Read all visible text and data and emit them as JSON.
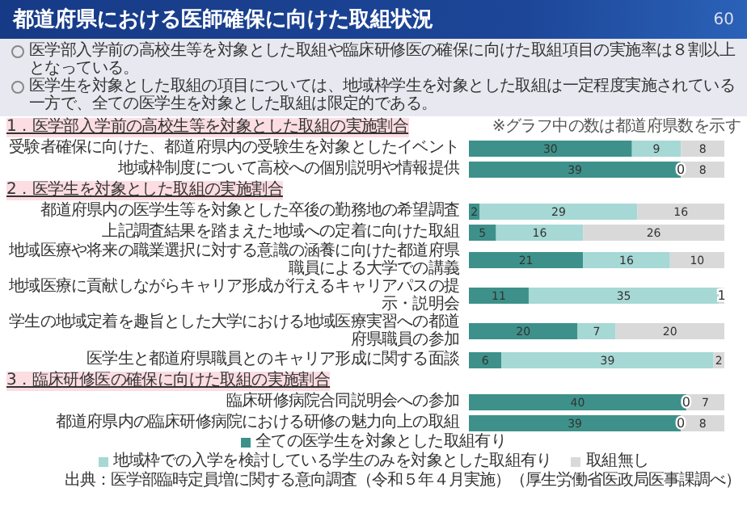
{
  "chart_data": [
    {
      "type": "other",
      "title": "都道府県における医師確保に向けた取組状況",
      "annotations": [
        "60",
        "医学部入学前の高校生等を対象とした取組や臨床研修医の確保に向けた取組項目の実施率は８割以上となっている。",
        "医学生を対象とした取組の項目については、地域枠学生を対象とした取組は一定程度実施されている一方で、全ての医学生を対象とした取組は限定的である。"
      ]
    },
    {
      "type": "bar",
      "orientation": "horizontal",
      "stacked": true,
      "data_labels": true,
      "title": "1．医学部入学前の高校生等を対象とした取組の実施割合",
      "annotations": [
        "※グラフ中の数は都道府県数を示す"
      ],
      "xlim": [
        0,
        47
      ],
      "categories": [
        "受験者確保に向けた、都道府県内の受験生を対象としたイベント",
        "地域枠制度について高校への個別説明や情報提供"
      ],
      "series": [
        {
          "color": "#3d918a",
          "values": [
            30,
            39
          ]
        },
        {
          "color": "#a6d8d5",
          "values": [
            9,
            0
          ]
        },
        {
          "color": "#d9d9d9",
          "values": [
            8,
            8
          ]
        }
      ]
    },
    {
      "type": "bar",
      "orientation": "horizontal",
      "stacked": true,
      "data_labels": true,
      "title": "2．医学生を対象とした取組の実施割合",
      "xlim": [
        0,
        47
      ],
      "categories": [
        "都道府県内の医学生等を対象とした卒後の勤務地の希望調査",
        "上記調査結果を踏まえた地域への定着に向けた取組",
        "地域医療や将来の職業選択に対する意識の涵養に向けた都道府県職員による大学での講義",
        "地域医療に貢献しながらキャリア形成が行えるキャリアパスの提示・説明会",
        "学生の地域定着を趣旨とした大学における地域医療実習への都道府県職員の参加",
        "医学生と都道府県職員とのキャリア形成に関する面談"
      ],
      "series": [
        {
          "color": "#3d918a",
          "values": [
            2,
            5,
            21,
            11,
            20,
            6
          ]
        },
        {
          "color": "#a6d8d5",
          "values": [
            29,
            16,
            16,
            35,
            7,
            39
          ]
        },
        {
          "color": "#d9d9d9",
          "values": [
            16,
            26,
            10,
            1,
            20,
            2
          ]
        }
      ]
    },
    {
      "type": "bar",
      "orientation": "horizontal",
      "stacked": true,
      "data_labels": true,
      "title": "3．臨床研修医の確保に向けた取組の実施割合",
      "xlim": [
        0,
        47
      ],
      "legend": "bottom",
      "annotations": [
        "出典：医学部臨時定員増に関する意向調査（令和５年４月実施）（厚生労働省医政局医事課調べ）"
      ],
      "categories": [
        "臨床研修病院合同説明会への参加",
        "都道府県内の臨床研修病院における研修の魅力向上の取組"
      ],
      "series": [
        {
          "name": "全ての医学生を対象とした取組有り",
          "color": "#3d918a",
          "values": [
            40,
            39
          ]
        },
        {
          "name": "地域枠での入学を検討している学生のみを対象とした取組有り",
          "color": "#a6d8d5",
          "values": [
            0,
            0
          ]
        },
        {
          "name": "取組無し",
          "color": "#d9d9d9",
          "values": [
            7,
            8
          ]
        }
      ]
    }
  ]
}
